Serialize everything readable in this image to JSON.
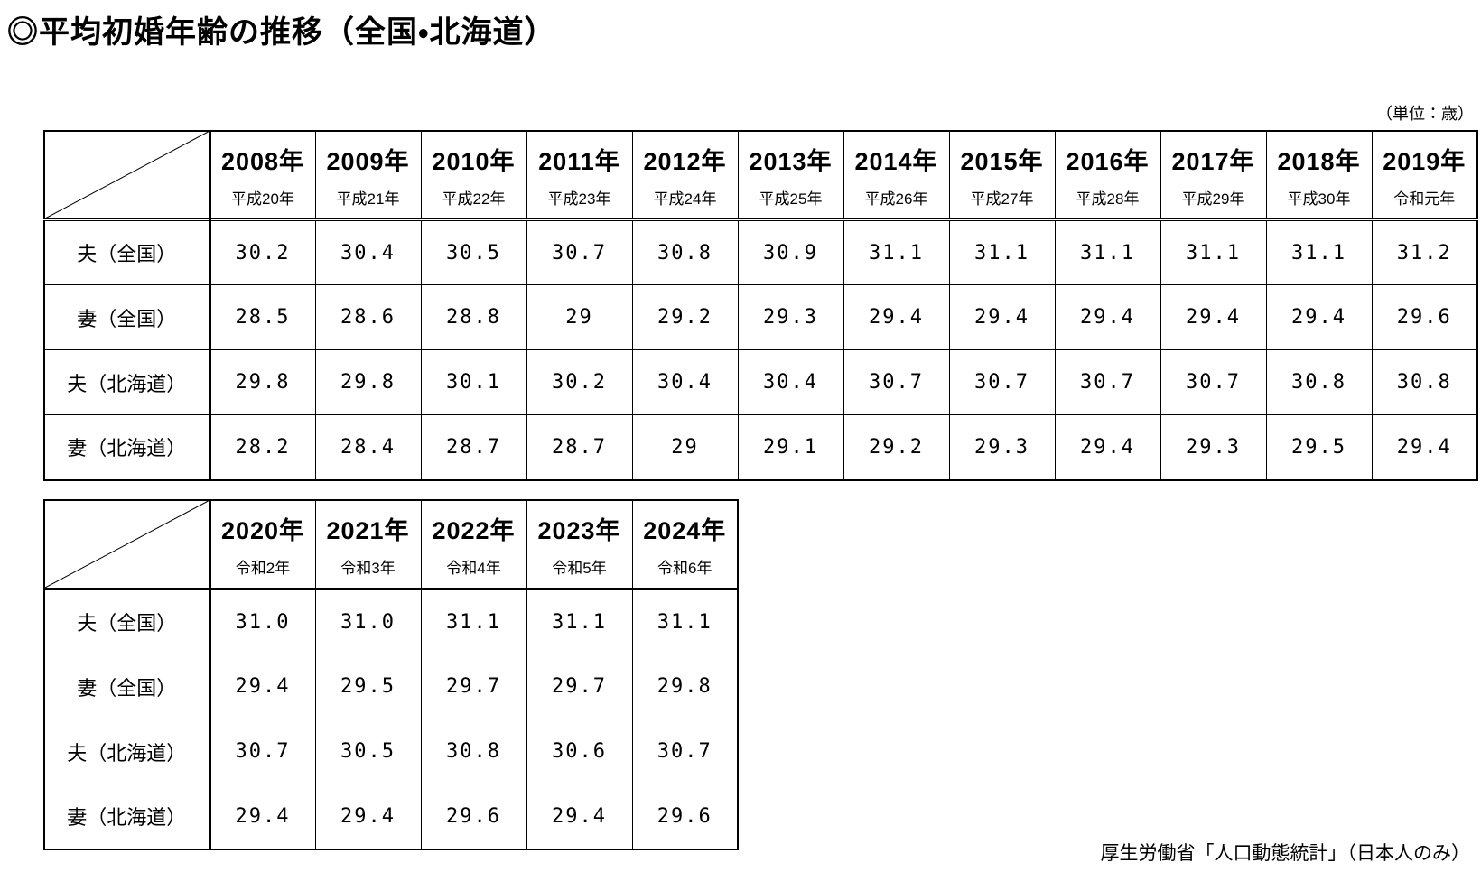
{
  "page": {
    "title": "◎平均初婚年齢の推移（全国・北海道）",
    "unit_note": "（単位：歳）",
    "source_note": "厚生労働省「人口動態統計」（日本人のみ）",
    "colors": {
      "text": "#000000",
      "border": "#000000",
      "background": "#ffffff"
    }
  },
  "tables": [
    {
      "name": "marriage-age-table-2008-2019",
      "columns": [
        {
          "year": "2008年",
          "era": "平成20年"
        },
        {
          "year": "2009年",
          "era": "平成21年"
        },
        {
          "year": "2010年",
          "era": "平成22年"
        },
        {
          "year": "2011年",
          "era": "平成23年"
        },
        {
          "year": "2012年",
          "era": "平成24年"
        },
        {
          "year": "2013年",
          "era": "平成25年"
        },
        {
          "year": "2014年",
          "era": "平成26年"
        },
        {
          "year": "2015年",
          "era": "平成27年"
        },
        {
          "year": "2016年",
          "era": "平成28年"
        },
        {
          "year": "2017年",
          "era": "平成29年"
        },
        {
          "year": "2018年",
          "era": "平成30年"
        },
        {
          "year": "2019年",
          "era": "令和元年"
        }
      ],
      "rows": [
        {
          "label": "夫（全国）",
          "values": [
            "30.2",
            "30.4",
            "30.5",
            "30.7",
            "30.8",
            "30.9",
            "31.1",
            "31.1",
            "31.1",
            "31.1",
            "31.1",
            "31.2"
          ]
        },
        {
          "label": "妻（全国）",
          "values": [
            "28.5",
            "28.6",
            "28.8",
            "29",
            "29.2",
            "29.3",
            "29.4",
            "29.4",
            "29.4",
            "29.4",
            "29.4",
            "29.6"
          ]
        },
        {
          "label": "夫（北海道）",
          "values": [
            "29.8",
            "29.8",
            "30.1",
            "30.2",
            "30.4",
            "30.4",
            "30.7",
            "30.7",
            "30.7",
            "30.7",
            "30.8",
            "30.8"
          ]
        },
        {
          "label": "妻（北海道）",
          "values": [
            "28.2",
            "28.4",
            "28.7",
            "28.7",
            "29",
            "29.1",
            "29.2",
            "29.3",
            "29.4",
            "29.3",
            "29.5",
            "29.4"
          ]
        }
      ]
    },
    {
      "name": "marriage-age-table-2020-2024",
      "columns": [
        {
          "year": "2020年",
          "era": "令和2年"
        },
        {
          "year": "2021年",
          "era": "令和3年"
        },
        {
          "year": "2022年",
          "era": "令和4年"
        },
        {
          "year": "2023年",
          "era": "令和5年"
        },
        {
          "year": "2024年",
          "era": "令和6年"
        }
      ],
      "rows": [
        {
          "label": "夫（全国）",
          "values": [
            "31.0",
            "31.0",
            "31.1",
            "31.1",
            "31.1"
          ]
        },
        {
          "label": "妻（全国）",
          "values": [
            "29.4",
            "29.5",
            "29.7",
            "29.7",
            "29.8"
          ]
        },
        {
          "label": "夫（北海道）",
          "values": [
            "30.7",
            "30.5",
            "30.8",
            "30.6",
            "30.7"
          ]
        },
        {
          "label": "妻（北海道）",
          "values": [
            "29.4",
            "29.4",
            "29.6",
            "29.4",
            "29.6"
          ]
        }
      ]
    }
  ]
}
